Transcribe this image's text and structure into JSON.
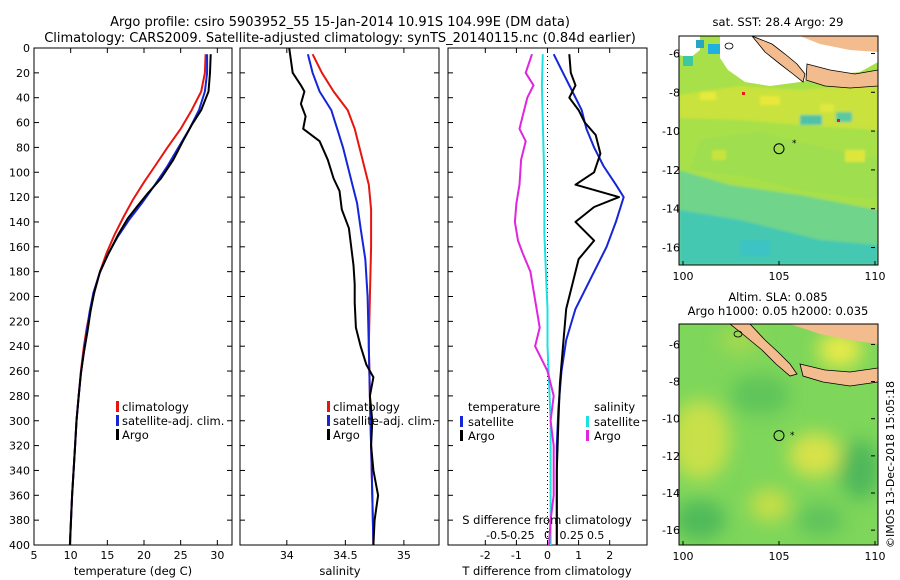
{
  "title_line1": "Argo profile: csiro 5903952_55 15-Jan-2014 10.91S 104.99E (DM data)",
  "title_line2": "Climatology: CARS2009. Satellite-adjusted climatology: synTS_20140115.nc (0.84d earlier)",
  "credit": "©IMOS 13-Dec-2018 15:05:18",
  "colors": {
    "climatology": "#e8150f",
    "satellite": "#1525d8",
    "argo": "#000000",
    "sat_salinity": "#1fe0e0",
    "argo_salinity": "#e025e0"
  },
  "chart_data": [
    {
      "type": "line",
      "title": "temperature profile",
      "xlabel": "temperature (deg C)",
      "ylabel": "",
      "xlim": [
        5,
        32
      ],
      "ylim": [
        400,
        0
      ],
      "xticks": [
        "5",
        "10",
        "15",
        "20",
        "25",
        "30"
      ],
      "xtick_values": [
        5,
        10,
        15,
        20,
        25,
        30
      ],
      "yticks": [
        "0",
        "20",
        "40",
        "60",
        "80",
        "100",
        "120",
        "140",
        "160",
        "180",
        "200",
        "220",
        "240",
        "260",
        "280",
        "300",
        "320",
        "340",
        "360",
        "380",
        "400"
      ],
      "ytick_values": [
        0,
        20,
        40,
        60,
        80,
        100,
        120,
        140,
        160,
        180,
        200,
        220,
        240,
        260,
        280,
        300,
        320,
        340,
        360,
        380,
        400
      ],
      "legend": [
        "climatology",
        "satellite-adj. clim.",
        "Argo"
      ],
      "series": [
        {
          "name": "climatology",
          "color": "#e8150f",
          "points": [
            [
              28.4,
              5
            ],
            [
              28.3,
              20
            ],
            [
              27.8,
              35
            ],
            [
              26.5,
              50
            ],
            [
              25,
              65
            ],
            [
              23.2,
              80
            ],
            [
              21.5,
              95
            ],
            [
              20,
              108
            ],
            [
              18.5,
              122
            ],
            [
              17.2,
              136
            ],
            [
              16,
              150
            ],
            [
              14.9,
              165
            ],
            [
              14,
              180
            ],
            [
              13.3,
              195
            ],
            [
              12.7,
              210
            ],
            [
              12.2,
              225
            ],
            [
              11.8,
              240
            ],
            [
              11.4,
              260
            ],
            [
              11.1,
              280
            ],
            [
              10.8,
              300
            ],
            [
              10.6,
              320
            ],
            [
              10.4,
              340
            ],
            [
              10.2,
              360
            ],
            [
              10.05,
              380
            ],
            [
              9.9,
              400
            ]
          ]
        },
        {
          "name": "satellite-adj. clim.",
          "color": "#1525d8",
          "points": [
            [
              28.6,
              5
            ],
            [
              28.6,
              20
            ],
            [
              28.3,
              35
            ],
            [
              27.5,
              50
            ],
            [
              26.2,
              65
            ],
            [
              24.7,
              80
            ],
            [
              23.2,
              95
            ],
            [
              21.5,
              110
            ],
            [
              19.7,
              125
            ],
            [
              18,
              138
            ],
            [
              16.4,
              152
            ],
            [
              15,
              167
            ],
            [
              13.9,
              182
            ],
            [
              13.1,
              197
            ],
            [
              12.6,
              212
            ],
            [
              12.2,
              228
            ],
            [
              11.8,
              244
            ],
            [
              11.4,
              262
            ],
            [
              11.1,
              280
            ],
            [
              10.8,
              300
            ],
            [
              10.6,
              320
            ],
            [
              10.4,
              340
            ],
            [
              10.2,
              360
            ],
            [
              10.05,
              380
            ],
            [
              9.9,
              400
            ]
          ]
        },
        {
          "name": "Argo",
          "color": "#000000",
          "points": [
            [
              29.1,
              5
            ],
            [
              29,
              20
            ],
            [
              28.8,
              35
            ],
            [
              27.8,
              50
            ],
            [
              26.5,
              62
            ],
            [
              25.3,
              75
            ],
            [
              24,
              90
            ],
            [
              22.3,
              105
            ],
            [
              20.5,
              117
            ],
            [
              19,
              128
            ],
            [
              17.8,
              137
            ],
            [
              16.5,
              150
            ],
            [
              15.2,
              165
            ],
            [
              14,
              180
            ],
            [
              13.2,
              197
            ],
            [
              12.7,
              212
            ],
            [
              12.3,
              228
            ],
            [
              11.8,
              245
            ],
            [
              11.4,
              262
            ],
            [
              11.1,
              280
            ],
            [
              10.8,
              300
            ],
            [
              10.6,
              320
            ],
            [
              10.4,
              340
            ],
            [
              10.2,
              360
            ],
            [
              10.05,
              380
            ],
            [
              9.9,
              400
            ]
          ]
        }
      ]
    },
    {
      "type": "line",
      "title": "salinity profile",
      "xlabel": "salinity",
      "ylabel": "",
      "xlim": [
        33.6,
        35.3
      ],
      "ylim": [
        400,
        0
      ],
      "xticks": [
        "34",
        "34.5",
        "35"
      ],
      "xtick_values": [
        34,
        34.5,
        35
      ],
      "legend": [
        "climatology",
        "satellite-adj. clim.",
        "Argo"
      ],
      "series": [
        {
          "name": "climatology",
          "color": "#e8150f",
          "points": [
            [
              34.22,
              5
            ],
            [
              34.3,
              20
            ],
            [
              34.4,
              35
            ],
            [
              34.52,
              50
            ],
            [
              34.58,
              65
            ],
            [
              34.62,
              80
            ],
            [
              34.66,
              95
            ],
            [
              34.7,
              110
            ],
            [
              34.72,
              130
            ],
            [
              34.72,
              160
            ],
            [
              34.71,
              200
            ],
            [
              34.7,
              240
            ],
            [
              34.71,
              280
            ],
            [
              34.72,
              320
            ],
            [
              34.73,
              360
            ],
            [
              34.74,
              400
            ]
          ]
        },
        {
          "name": "satellite-adj. clim.",
          "color": "#1525d8",
          "points": [
            [
              34.18,
              5
            ],
            [
              34.22,
              20
            ],
            [
              34.28,
              35
            ],
            [
              34.38,
              50
            ],
            [
              34.43,
              65
            ],
            [
              34.48,
              80
            ],
            [
              34.52,
              95
            ],
            [
              34.56,
              110
            ],
            [
              34.6,
              125
            ],
            [
              34.63,
              145
            ],
            [
              34.67,
              170
            ],
            [
              34.69,
              200
            ],
            [
              34.7,
              240
            ],
            [
              34.71,
              280
            ],
            [
              34.72,
              320
            ],
            [
              34.73,
              360
            ],
            [
              34.74,
              400
            ]
          ]
        },
        {
          "name": "Argo",
          "color": "#000000",
          "points": [
            [
              34.02,
              0
            ],
            [
              34.05,
              20
            ],
            [
              34.12,
              30
            ],
            [
              34.15,
              35
            ],
            [
              34.12,
              45
            ],
            [
              34.16,
              55
            ],
            [
              34.14,
              65
            ],
            [
              34.28,
              75
            ],
            [
              34.35,
              90
            ],
            [
              34.4,
              105
            ],
            [
              34.45,
              115
            ],
            [
              34.47,
              130
            ],
            [
              34.53,
              145
            ],
            [
              34.55,
              160
            ],
            [
              34.57,
              175
            ],
            [
              34.58,
              190
            ],
            [
              34.58,
              205
            ],
            [
              34.59,
              225
            ],
            [
              34.63,
              240
            ],
            [
              34.68,
              255
            ],
            [
              34.74,
              265
            ],
            [
              34.71,
              280
            ],
            [
              34.73,
              300
            ],
            [
              34.72,
              320
            ],
            [
              34.74,
              340
            ],
            [
              34.78,
              360
            ],
            [
              34.75,
              380
            ],
            [
              34.74,
              400
            ]
          ]
        }
      ]
    },
    {
      "type": "line",
      "title": "difference from climatology",
      "xlabel": "T difference from climatology",
      "xlabel2": "S difference from climatology",
      "xlim": [
        -3.2,
        3.2
      ],
      "ylim": [
        400,
        0
      ],
      "xticks": [
        "-2",
        "-1",
        "0",
        "1",
        "2"
      ],
      "xtick_values": [
        -2,
        -1,
        0,
        1,
        2
      ],
      "xticks2": [
        "-0.5",
        "-0.25",
        "0",
        "0.25",
        "0.5"
      ],
      "xtick2_values": [
        -1.63,
        -0.87,
        0,
        0.78,
        1.55
      ],
      "legend_left_title": "temperature",
      "legend_right_title": "salinity",
      "legend": [
        "satellite",
        "Argo",
        "satellite",
        "Argo"
      ],
      "series": [
        {
          "name": "temperature satellite",
          "color": "#1525d8",
          "points": [
            [
              0.2,
              5
            ],
            [
              0.5,
              20
            ],
            [
              0.8,
              35
            ],
            [
              1.1,
              50
            ],
            [
              1.25,
              65
            ],
            [
              1.5,
              80
            ],
            [
              1.8,
              95
            ],
            [
              2.2,
              110
            ],
            [
              2.45,
              120
            ],
            [
              2.2,
              140
            ],
            [
              1.9,
              160
            ],
            [
              1.4,
              185
            ],
            [
              0.9,
              210
            ],
            [
              0.6,
              235
            ],
            [
              0.45,
              260
            ],
            [
              0.35,
              290
            ],
            [
              0.3,
              320
            ],
            [
              0.3,
              360
            ],
            [
              0.3,
              400
            ]
          ]
        },
        {
          "name": "temperature Argo",
          "color": "#000000",
          "points": [
            [
              0.7,
              5
            ],
            [
              0.75,
              20
            ],
            [
              0.9,
              30
            ],
            [
              0.7,
              40
            ],
            [
              1,
              50
            ],
            [
              1.2,
              60
            ],
            [
              1.55,
              70
            ],
            [
              1.7,
              85
            ],
            [
              1.5,
              100
            ],
            [
              0.9,
              110
            ],
            [
              2.3,
              120
            ],
            [
              1.5,
              128
            ],
            [
              0.9,
              140
            ],
            [
              1.5,
              155
            ],
            [
              1,
              170
            ],
            [
              0.8,
              190
            ],
            [
              0.6,
              210
            ],
            [
              0.5,
              240
            ],
            [
              0.4,
              270
            ],
            [
              0.35,
              300
            ],
            [
              0.3,
              340
            ],
            [
              0.3,
              400
            ]
          ]
        },
        {
          "name": "salinity satellite",
          "color": "#1fe0e0",
          "points": [
            [
              -0.15,
              5
            ],
            [
              -0.18,
              30
            ],
            [
              -0.15,
              60
            ],
            [
              -0.12,
              90
            ],
            [
              -0.1,
              120
            ],
            [
              -0.1,
              150
            ],
            [
              -0.05,
              180
            ],
            [
              0,
              210
            ],
            [
              0,
              240
            ],
            [
              0.05,
              270
            ],
            [
              0.1,
              300
            ],
            [
              0.1,
              340
            ],
            [
              0.1,
              380
            ],
            [
              0.1,
              400
            ]
          ]
        },
        {
          "name": "salinity Argo",
          "color": "#e025e0",
          "points": [
            [
              -0.5,
              5
            ],
            [
              -0.7,
              20
            ],
            [
              -0.45,
              30
            ],
            [
              -0.65,
              40
            ],
            [
              -0.8,
              55
            ],
            [
              -0.9,
              65
            ],
            [
              -0.7,
              75
            ],
            [
              -0.85,
              90
            ],
            [
              -0.9,
              110
            ],
            [
              -1,
              125
            ],
            [
              -1.05,
              140
            ],
            [
              -0.95,
              155
            ],
            [
              -0.8,
              165
            ],
            [
              -0.55,
              180
            ],
            [
              -0.45,
              195
            ],
            [
              -0.35,
              210
            ],
            [
              -0.25,
              225
            ],
            [
              -0.4,
              240
            ],
            [
              0,
              260
            ],
            [
              0.2,
              280
            ],
            [
              0.1,
              300
            ],
            [
              0.2,
              320
            ],
            [
              0.2,
              360
            ],
            [
              0.1,
              380
            ],
            [
              0.05,
              400
            ]
          ]
        }
      ]
    }
  ],
  "sst_map": {
    "title": "sat. SST: 28.4 Argo: 29",
    "lon_ticks": [
      "100",
      "105",
      "110"
    ],
    "lat_ticks": [
      "-6",
      "-8",
      "-10",
      "-12",
      "-14",
      "-16"
    ],
    "argo_lon": 105,
    "argo_lat": -10.91
  },
  "sla_map": {
    "title_line1": "Altim. SLA: 0.085",
    "title_line2": "Argo h1000: 0.05 h2000: 0.035",
    "lon_ticks": [
      "100",
      "105",
      "110"
    ],
    "lat_ticks": [
      "-6",
      "-8",
      "-10",
      "-12",
      "-14",
      "-16"
    ],
    "argo_lon": 105,
    "argo_lat": -10.91
  }
}
